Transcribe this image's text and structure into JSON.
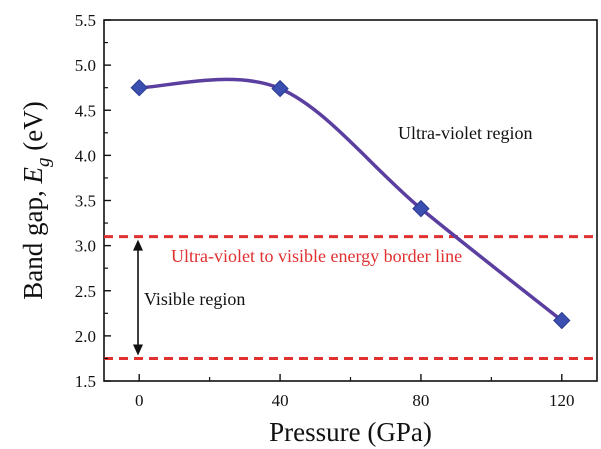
{
  "chart_data": {
    "type": "line",
    "title": "",
    "xlabel": "Pressure (GPa)",
    "ylabel_main": "Band gap, ",
    "ylabel_symbol": "E",
    "ylabel_subscript": "g",
    "ylabel_unit": " (eV)",
    "xlim": [
      -10,
      130
    ],
    "ylim": [
      1.5,
      5.5
    ],
    "xticks": [
      0,
      40,
      80,
      120
    ],
    "xtick_labels": [
      "0",
      "40",
      "80",
      "120"
    ],
    "yticks": [
      1.5,
      2.0,
      2.5,
      3.0,
      3.5,
      4.0,
      4.5,
      5.0,
      5.5
    ],
    "ytick_labels": [
      "1.5",
      "2.0",
      "2.5",
      "3.0",
      "3.5",
      "4.0",
      "4.5",
      "5.0",
      "5.5"
    ],
    "grid": false,
    "series": [
      {
        "x": [
          0,
          40,
          80,
          120
        ],
        "y": [
          4.75,
          4.74,
          3.41,
          2.17
        ],
        "marker": "diamond",
        "marker_color": "#3a4fb0",
        "line_color": "#5b3fa0"
      }
    ],
    "reference_lines": [
      {
        "y": 3.1,
        "color": "#e03030",
        "style": "dashed"
      },
      {
        "y": 1.75,
        "color": "#e03030",
        "style": "dashed"
      }
    ],
    "annotations": {
      "uv_region": "Ultra-violet region",
      "border_line": "Ultra-violet to visible energy border line",
      "visible_region": "Visible region"
    },
    "colors": {
      "border_text": "#e03030",
      "axis": "#111111"
    }
  }
}
